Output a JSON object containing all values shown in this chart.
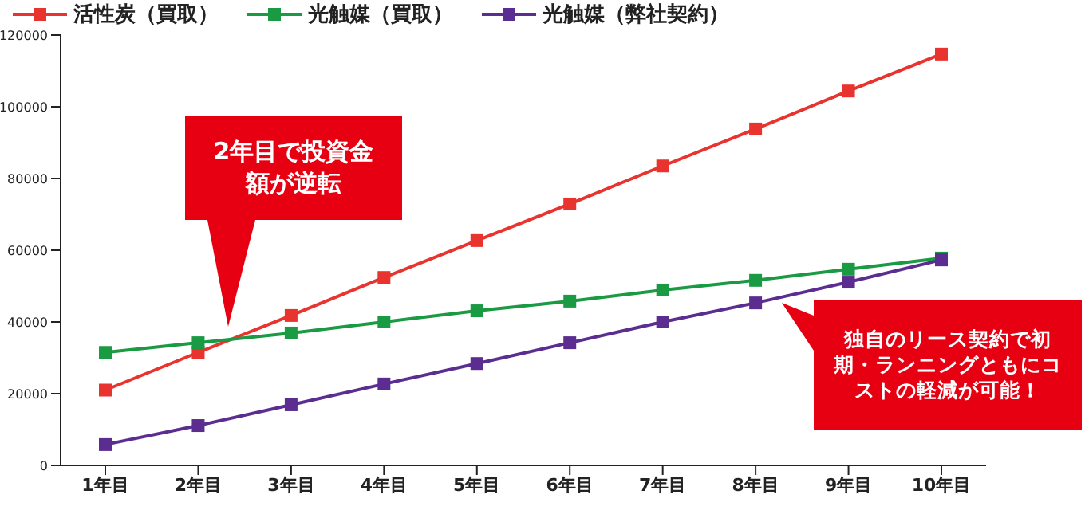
{
  "chart_data": {
    "type": "line",
    "categories": [
      "1年目",
      "2年目",
      "3年目",
      "4年目",
      "5年目",
      "6年目",
      "7年目",
      "8年目",
      "9年目",
      "10年目"
    ],
    "series": [
      {
        "name": "活性炭（買取）",
        "color": "#e8332e",
        "values": [
          21000,
          31500,
          41800,
          52400,
          62700,
          72900,
          83500,
          93800,
          104400,
          114700
        ]
      },
      {
        "name": "光触媒（買取）",
        "color": "#1b9a44",
        "values": [
          31500,
          34200,
          36900,
          40000,
          43100,
          45800,
          48900,
          51600,
          54700,
          57800
        ]
      },
      {
        "name": "光触媒（弊社契約）",
        "color": "#5b2d90",
        "values": [
          5800,
          11100,
          16900,
          22700,
          28400,
          34200,
          40000,
          45300,
          51100,
          57300
        ]
      }
    ],
    "ylim": [
      0,
      120000
    ],
    "yticks": [
      0,
      20000,
      40000,
      60000,
      80000,
      100000,
      120000
    ],
    "grid": false,
    "legend": "top",
    "marker": "square",
    "line_style": "solid",
    "annotations": [
      "2年目で投資金額が逆転",
      "独自のリース契約で初期・ランニングともにコストの軽減が可能！"
    ]
  }
}
